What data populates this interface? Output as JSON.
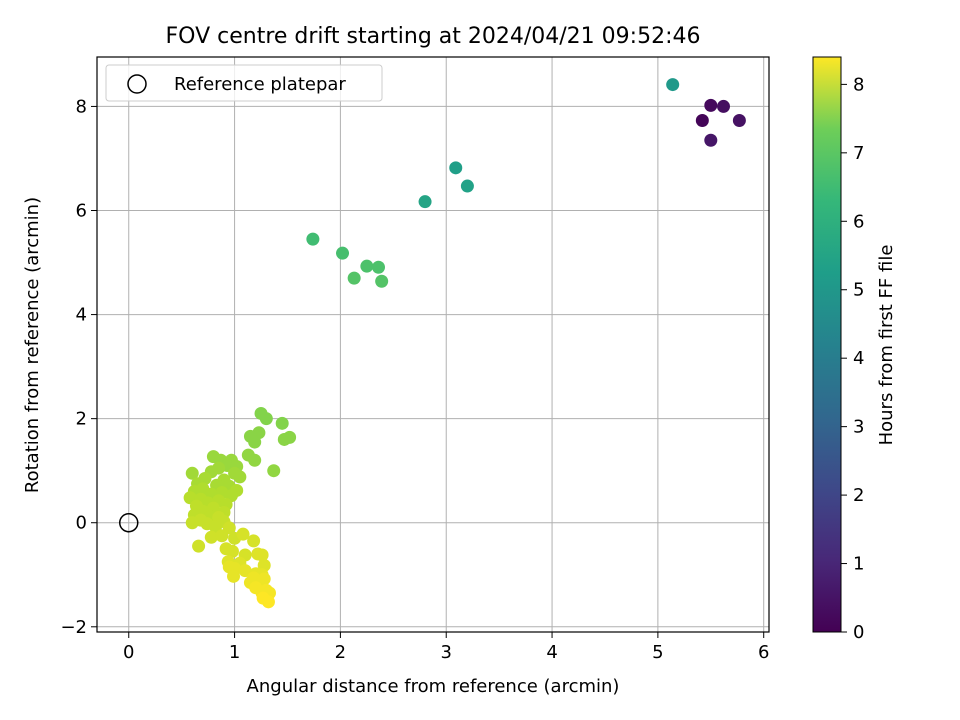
{
  "chart_data": {
    "type": "scatter",
    "title": "FOV centre drift starting at 2024/04/21 09:52:46",
    "xlabel": "Angular distance from reference (arcmin)",
    "ylabel": "Rotation from reference (arcmin)",
    "xlim": [
      -0.3,
      6.05
    ],
    "ylim": [
      -2.1,
      8.95
    ],
    "xticks": [
      0,
      1,
      2,
      3,
      4,
      5,
      6
    ],
    "yticks": [
      -2,
      0,
      2,
      4,
      6,
      8
    ],
    "grid": true,
    "legend": {
      "position": "top-left",
      "entries": [
        "Reference platepar"
      ]
    },
    "reference_point": {
      "x": 0,
      "y": 0,
      "marker": "open-circle"
    },
    "colorbar": {
      "label": "Hours from first FF file",
      "colormap": "viridis",
      "range": [
        0,
        8.4
      ],
      "ticks": [
        0,
        1,
        2,
        3,
        4,
        5,
        6,
        7,
        8
      ]
    },
    "points": [
      {
        "x": 5.5,
        "y": 8.02,
        "c": 0.2
      },
      {
        "x": 5.62,
        "y": 8.0,
        "c": 0.3
      },
      {
        "x": 5.42,
        "y": 7.73,
        "c": 0.1
      },
      {
        "x": 5.77,
        "y": 7.73,
        "c": 0.4
      },
      {
        "x": 5.5,
        "y": 7.35,
        "c": 0.5
      },
      {
        "x": 5.14,
        "y": 8.42,
        "c": 4.5
      },
      {
        "x": 3.09,
        "y": 6.82,
        "c": 4.7
      },
      {
        "x": 3.2,
        "y": 6.47,
        "c": 4.8
      },
      {
        "x": 2.8,
        "y": 6.17,
        "c": 4.9
      },
      {
        "x": 1.74,
        "y": 5.45,
        "c": 5.8
      },
      {
        "x": 2.02,
        "y": 5.18,
        "c": 5.9
      },
      {
        "x": 2.25,
        "y": 4.93,
        "c": 6.0
      },
      {
        "x": 2.36,
        "y": 4.91,
        "c": 6.0
      },
      {
        "x": 2.13,
        "y": 4.7,
        "c": 6.1
      },
      {
        "x": 2.39,
        "y": 4.64,
        "c": 6.1
      },
      {
        "x": 1.25,
        "y": 2.1,
        "c": 6.8
      },
      {
        "x": 1.3,
        "y": 2.0,
        "c": 6.8
      },
      {
        "x": 1.45,
        "y": 1.91,
        "c": 6.8
      },
      {
        "x": 1.23,
        "y": 1.73,
        "c": 6.9
      },
      {
        "x": 1.15,
        "y": 1.66,
        "c": 6.9
      },
      {
        "x": 1.52,
        "y": 1.64,
        "c": 6.9
      },
      {
        "x": 1.47,
        "y": 1.6,
        "c": 6.9
      },
      {
        "x": 1.19,
        "y": 1.55,
        "c": 6.9
      },
      {
        "x": 1.13,
        "y": 1.3,
        "c": 7.0
      },
      {
        "x": 1.19,
        "y": 1.2,
        "c": 7.0
      },
      {
        "x": 1.37,
        "y": 1.0,
        "c": 7.0
      },
      {
        "x": 0.8,
        "y": 1.27,
        "c": 7.1
      },
      {
        "x": 0.87,
        "y": 1.2,
        "c": 7.1
      },
      {
        "x": 0.97,
        "y": 1.2,
        "c": 7.1
      },
      {
        "x": 0.93,
        "y": 1.1,
        "c": 7.1
      },
      {
        "x": 1.02,
        "y": 1.08,
        "c": 7.1
      },
      {
        "x": 0.85,
        "y": 1.05,
        "c": 7.2
      },
      {
        "x": 0.6,
        "y": 0.95,
        "c": 7.2
      },
      {
        "x": 0.78,
        "y": 0.98,
        "c": 7.2
      },
      {
        "x": 1.0,
        "y": 0.95,
        "c": 7.2
      },
      {
        "x": 1.05,
        "y": 0.88,
        "c": 7.2
      },
      {
        "x": 0.72,
        "y": 0.85,
        "c": 7.3
      },
      {
        "x": 0.9,
        "y": 0.82,
        "c": 7.3
      },
      {
        "x": 0.65,
        "y": 0.75,
        "c": 7.3
      },
      {
        "x": 0.83,
        "y": 0.72,
        "c": 7.3
      },
      {
        "x": 0.95,
        "y": 0.7,
        "c": 7.3
      },
      {
        "x": 0.7,
        "y": 0.65,
        "c": 7.4
      },
      {
        "x": 1.02,
        "y": 0.62,
        "c": 7.4
      },
      {
        "x": 0.62,
        "y": 0.6,
        "c": 7.4
      },
      {
        "x": 0.88,
        "y": 0.58,
        "c": 7.4
      },
      {
        "x": 0.78,
        "y": 0.55,
        "c": 7.4
      },
      {
        "x": 0.97,
        "y": 0.52,
        "c": 7.4
      },
      {
        "x": 0.58,
        "y": 0.48,
        "c": 7.5
      },
      {
        "x": 0.68,
        "y": 0.45,
        "c": 7.5
      },
      {
        "x": 0.85,
        "y": 0.42,
        "c": 7.5
      },
      {
        "x": 0.75,
        "y": 0.38,
        "c": 7.5
      },
      {
        "x": 0.92,
        "y": 0.35,
        "c": 7.5
      },
      {
        "x": 0.64,
        "y": 0.32,
        "c": 7.6
      },
      {
        "x": 0.8,
        "y": 0.28,
        "c": 7.6
      },
      {
        "x": 0.7,
        "y": 0.22,
        "c": 7.6
      },
      {
        "x": 0.9,
        "y": 0.2,
        "c": 7.6
      },
      {
        "x": 0.62,
        "y": 0.15,
        "c": 7.6
      },
      {
        "x": 0.77,
        "y": 0.12,
        "c": 7.6
      },
      {
        "x": 0.85,
        "y": 0.1,
        "c": 7.7
      },
      {
        "x": 0.68,
        "y": 0.05,
        "c": 7.7
      },
      {
        "x": 0.6,
        "y": 0.0,
        "c": 7.7
      },
      {
        "x": 0.74,
        "y": -0.02,
        "c": 7.7
      },
      {
        "x": 0.9,
        "y": 0.02,
        "c": 7.7
      },
      {
        "x": 0.82,
        "y": -0.08,
        "c": 7.7
      },
      {
        "x": 0.95,
        "y": -0.1,
        "c": 7.8
      },
      {
        "x": 0.78,
        "y": -0.28,
        "c": 7.8
      },
      {
        "x": 0.88,
        "y": -0.25,
        "c": 7.8
      },
      {
        "x": 1.0,
        "y": -0.3,
        "c": 7.8
      },
      {
        "x": 0.66,
        "y": -0.45,
        "c": 7.8
      },
      {
        "x": 0.92,
        "y": -0.5,
        "c": 7.9
      },
      {
        "x": 1.08,
        "y": -0.22,
        "c": 7.9
      },
      {
        "x": 1.18,
        "y": -0.35,
        "c": 7.9
      },
      {
        "x": 0.98,
        "y": -0.55,
        "c": 7.9
      },
      {
        "x": 1.1,
        "y": -0.62,
        "c": 7.9
      },
      {
        "x": 1.22,
        "y": -0.6,
        "c": 8.0
      },
      {
        "x": 1.26,
        "y": -0.62,
        "c": 8.0
      },
      {
        "x": 0.94,
        "y": -0.75,
        "c": 8.0
      },
      {
        "x": 1.05,
        "y": -0.78,
        "c": 8.0
      },
      {
        "x": 1.28,
        "y": -0.82,
        "c": 8.0
      },
      {
        "x": 0.95,
        "y": -0.85,
        "c": 8.1
      },
      {
        "x": 1.0,
        "y": -0.88,
        "c": 8.1
      },
      {
        "x": 1.1,
        "y": -0.92,
        "c": 8.1
      },
      {
        "x": 1.2,
        "y": -0.98,
        "c": 8.1
      },
      {
        "x": 1.26,
        "y": -1.0,
        "c": 8.1
      },
      {
        "x": 0.99,
        "y": -1.03,
        "c": 8.1
      },
      {
        "x": 1.18,
        "y": -1.06,
        "c": 8.2
      },
      {
        "x": 1.28,
        "y": -1.08,
        "c": 8.2
      },
      {
        "x": 1.15,
        "y": -1.15,
        "c": 8.2
      },
      {
        "x": 1.24,
        "y": -1.2,
        "c": 8.2
      },
      {
        "x": 1.2,
        "y": -1.25,
        "c": 8.3
      },
      {
        "x": 1.3,
        "y": -1.3,
        "c": 8.3
      },
      {
        "x": 1.26,
        "y": -1.35,
        "c": 8.3
      },
      {
        "x": 1.33,
        "y": -1.35,
        "c": 8.3
      },
      {
        "x": 1.27,
        "y": -1.45,
        "c": 8.4
      },
      {
        "x": 1.32,
        "y": -1.52,
        "c": 8.4
      }
    ]
  }
}
